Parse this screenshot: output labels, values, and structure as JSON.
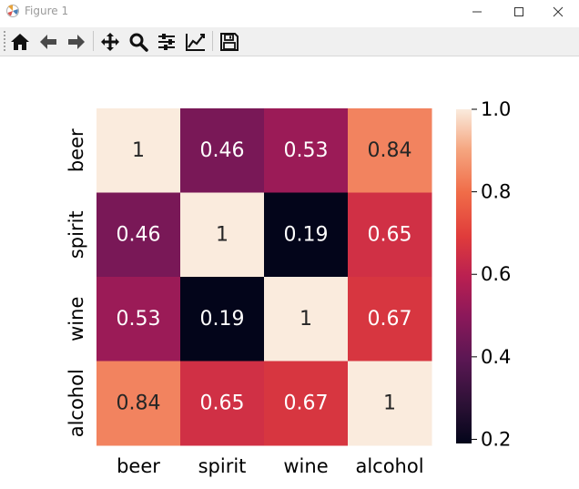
{
  "window": {
    "title": "Figure 1",
    "icon": "matplotlib-icon",
    "controls": [
      "minimize-icon",
      "maximize-icon",
      "close-icon"
    ]
  },
  "toolbar": {
    "buttons": [
      "home-icon",
      "back-arrow-icon",
      "forward-arrow-icon",
      "pan-icon",
      "zoom-icon",
      "configure-subplots-icon",
      "edit-axis-icon",
      "save-icon"
    ]
  },
  "chart_data": {
    "type": "heatmap",
    "title": "",
    "xlabel": "",
    "ylabel": "",
    "x_categories": [
      "beer",
      "spirit",
      "wine",
      "alcohol"
    ],
    "y_categories": [
      "beer",
      "spirit",
      "wine",
      "alcohol"
    ],
    "values": [
      [
        1,
        0.46,
        0.53,
        0.84
      ],
      [
        0.46,
        1,
        0.19,
        0.65
      ],
      [
        0.53,
        0.19,
        1,
        0.67
      ],
      [
        0.84,
        0.65,
        0.67,
        1
      ]
    ],
    "annotations": [
      [
        "1",
        "0.46",
        "0.53",
        "0.84"
      ],
      [
        "0.46",
        "1",
        "0.19",
        "0.65"
      ],
      [
        "0.53",
        "0.19",
        "1",
        "0.67"
      ],
      [
        "0.84",
        "0.65",
        "0.67",
        "1"
      ]
    ],
    "colormap": "rocket",
    "colorbar": {
      "range": [
        0.19,
        1.0
      ],
      "ticks": [
        0.2,
        0.4,
        0.6,
        0.8,
        1.0
      ],
      "tick_labels": [
        "0.2",
        "0.4",
        "0.6",
        "0.8",
        "1.0"
      ]
    },
    "colors": {
      "low": "#03051a",
      "high": "#faebdd",
      "light_text": "#ffffff",
      "dark_text": "#262626"
    }
  }
}
